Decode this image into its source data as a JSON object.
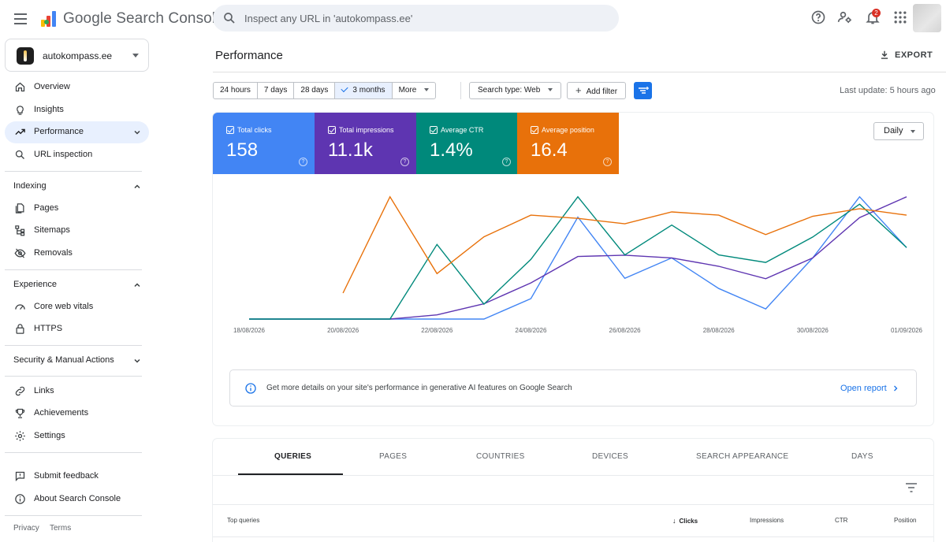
{
  "header": {
    "brand": "Google Search Console",
    "search_placeholder": "Inspect any URL in 'autokompass.ee'",
    "notification_count": "2"
  },
  "sidebar": {
    "property": "autokompass.ee",
    "items_top": [
      {
        "label": "Overview",
        "icon": "home-icon"
      },
      {
        "label": "Insights",
        "icon": "lightbulb-icon"
      },
      {
        "label": "Performance",
        "icon": "trending-up-icon",
        "active": true
      },
      {
        "label": "URL inspection",
        "icon": "search-icon"
      }
    ],
    "indexing": {
      "title": "Indexing",
      "items": [
        {
          "label": "Pages",
          "icon": "pages-icon"
        },
        {
          "label": "Sitemaps",
          "icon": "sitemap-icon"
        },
        {
          "label": "Removals",
          "icon": "eye-off-icon"
        }
      ]
    },
    "experience": {
      "title": "Experience",
      "items": [
        {
          "label": "Core web vitals",
          "icon": "speed-icon"
        },
        {
          "label": "HTTPS",
          "icon": "lock-icon"
        }
      ]
    },
    "security": {
      "title": "Security & Manual Actions"
    },
    "items_bottom": [
      {
        "label": "Links",
        "icon": "link-icon"
      },
      {
        "label": "Achievements",
        "icon": "trophy-icon"
      },
      {
        "label": "Settings",
        "icon": "gear-icon"
      }
    ],
    "items_footer": [
      {
        "label": "Submit feedback",
        "icon": "feedback-icon"
      },
      {
        "label": "About Search Console",
        "icon": "info-icon"
      }
    ],
    "privacy": "Privacy",
    "terms": "Terms"
  },
  "main": {
    "title": "Performance",
    "export_label": "EXPORT",
    "ranges": [
      "24 hours",
      "7 days",
      "28 days",
      "3 months",
      "More"
    ],
    "selected_range": "3 months",
    "search_type": "Search type: Web",
    "add_filter": "Add filter",
    "last_update": "Last update: 5 hours ago",
    "granularity": "Daily",
    "metrics": [
      {
        "label": "Total clicks",
        "value": "158",
        "color": "#4285f4"
      },
      {
        "label": "Total impressions",
        "value": "11.1k",
        "color": "#5e35b1"
      },
      {
        "label": "Average CTR",
        "value": "1.4%",
        "color": "#00897b"
      },
      {
        "label": "Average position",
        "value": "16.4",
        "color": "#e8710a"
      }
    ],
    "ai_notice": "Get more details on your site's performance in generative AI features on Google Search",
    "open_report": "Open report",
    "tabs": [
      "QUERIES",
      "PAGES",
      "COUNTRIES",
      "DEVICES",
      "SEARCH APPEARANCE",
      "DAYS"
    ],
    "table_headers": {
      "query": "Top queries",
      "clicks": "Clicks",
      "impressions": "Impressions",
      "ctr": "CTR",
      "position": "Position"
    }
  },
  "chart_data": {
    "type": "line",
    "x": [
      "18/08/2026",
      "19/08/2026",
      "20/08/2026",
      "21/08/2026",
      "22/08/2026",
      "23/08/2026",
      "24/08/2026",
      "25/08/2026",
      "26/08/2026",
      "27/08/2026",
      "28/08/2026",
      "29/08/2026",
      "30/08/2026",
      "31/08/2026",
      "01/09/2026"
    ],
    "xtick_labels": [
      "18/08/2026",
      "20/08/2026",
      "22/08/2026",
      "24/08/2026",
      "26/08/2026",
      "28/08/2026",
      "30/08/2026",
      "01/09/2026"
    ],
    "series": [
      {
        "name": "Total clicks",
        "color": "#4285f4",
        "values": [
          0,
          0,
          0,
          0,
          0,
          0,
          2,
          10,
          4,
          6,
          3,
          1,
          6,
          12,
          7
        ]
      },
      {
        "name": "Total impressions",
        "color": "#5e35b1",
        "values": [
          0,
          0,
          0,
          0,
          0.3,
          1.1,
          2.6,
          4.5,
          4.6,
          4.4,
          3.8,
          2.9,
          4.4,
          7.3,
          8.8
        ]
      },
      {
        "name": "Average CTR",
        "color": "#00897b",
        "values": [
          0,
          0,
          0,
          0,
          5,
          1,
          4,
          8.2,
          4.3,
          6.3,
          4.3,
          3.8,
          5.5,
          7.7,
          4.8
        ]
      },
      {
        "name": "Average position",
        "color": "#e8710a",
        "values": [
          null,
          null,
          2.4,
          11.3,
          4.2,
          7.6,
          9.6,
          9.3,
          8.8,
          9.9,
          9.6,
          7.8,
          9.5,
          10.2,
          9.6
        ]
      }
    ],
    "legend": "none",
    "grid": false
  }
}
